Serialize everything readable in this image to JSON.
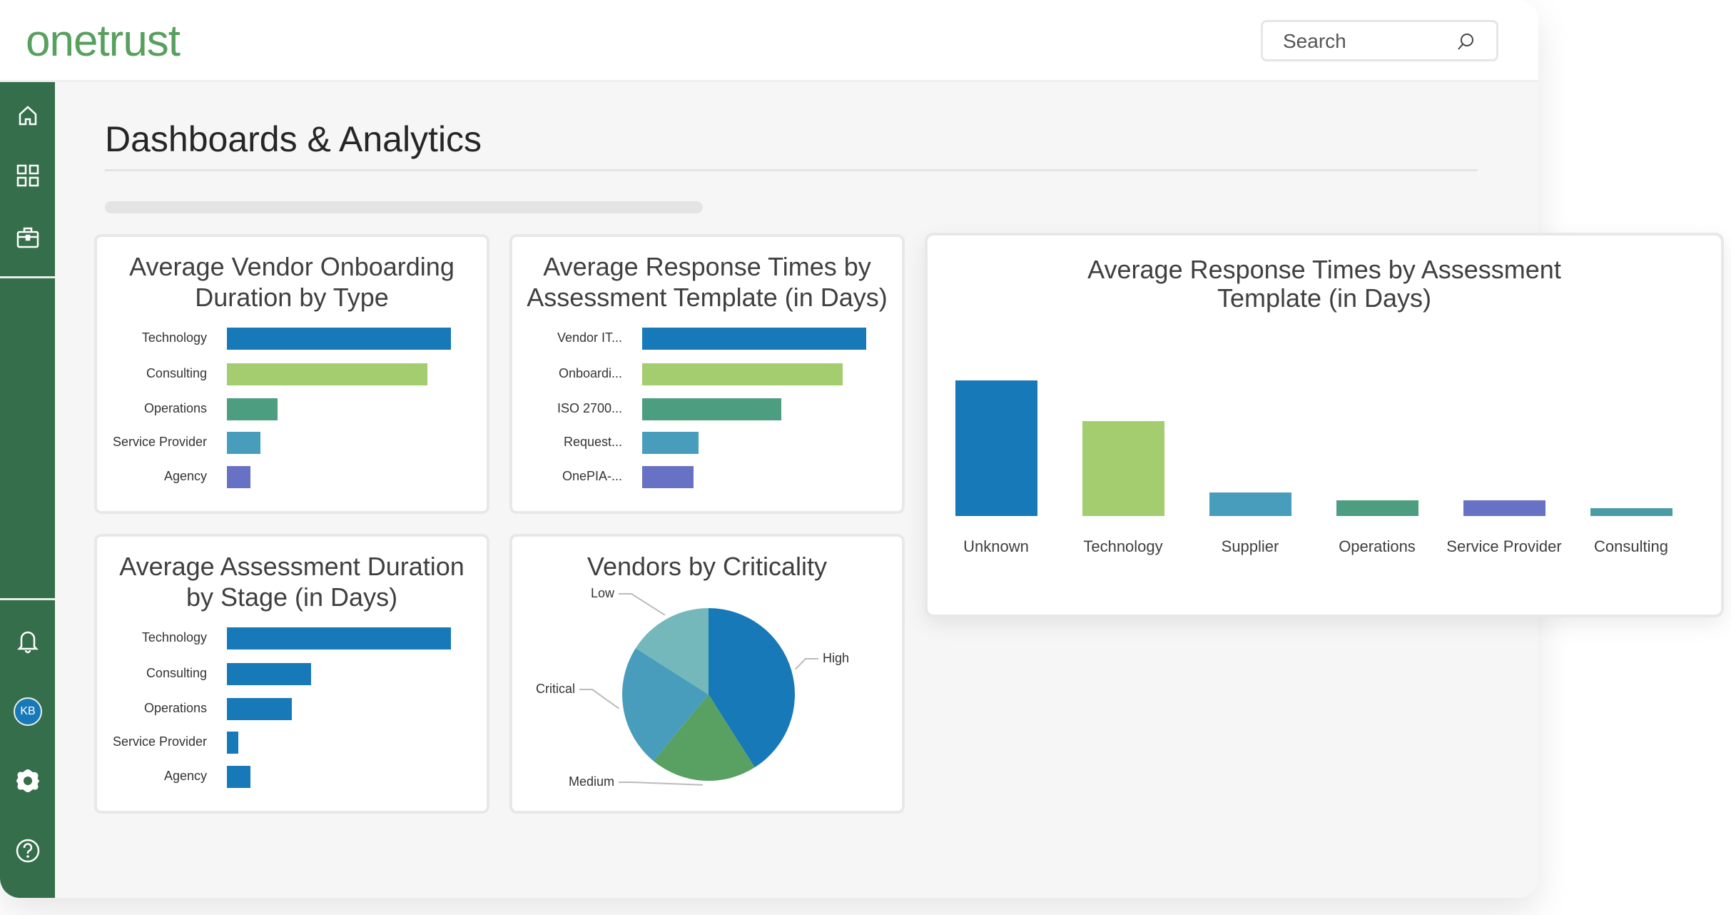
{
  "header": {
    "logo": "onetrust",
    "search_placeholder": "Search"
  },
  "sidebar": {
    "avatar_initials": "KB"
  },
  "page": {
    "title": "Dashboards & Analytics"
  },
  "colors": {
    "sidebar": "#356e4b",
    "logo": "#58a05e",
    "blue": "#1879b9",
    "lime": "#a3cd6f",
    "teal_green": "#4d9e80",
    "light_blue": "#489dbd",
    "purple": "#6872c4",
    "teal": "#4a9ba6"
  },
  "chart_data": [
    {
      "type": "bar",
      "orientation": "horizontal",
      "title": "Average Vendor Onboarding Duration by Type",
      "categories": [
        "Technology",
        "Consulting",
        "Operations",
        "Service Provider",
        "Agency"
      ],
      "values": [
        20,
        17.9,
        4.5,
        3,
        2.1
      ],
      "colors": [
        "#1879b9",
        "#a3cd6f",
        "#4d9e80",
        "#489dbd",
        "#6872c4"
      ]
    },
    {
      "type": "bar",
      "orientation": "horizontal",
      "title": "Average Response Times by Assessment Template (in Days)",
      "categories": [
        "Vendor IT...",
        "Onboardi...",
        "ISO 2700...",
        "Request...",
        "OnePIA-..."
      ],
      "values": [
        20,
        17.9,
        12.4,
        5,
        4.6
      ],
      "colors": [
        "#1879b9",
        "#a3cd6f",
        "#4d9e80",
        "#489dbd",
        "#6872c4"
      ]
    },
    {
      "type": "bar",
      "orientation": "horizontal",
      "title": "Average Assessment Duration by Stage (in Days)",
      "categories": [
        "Technology",
        "Consulting",
        "Operations",
        "Service Provider",
        "Agency"
      ],
      "values": [
        20,
        7.5,
        5.8,
        1,
        2.1
      ],
      "colors": [
        "#1879b9",
        "#1879b9",
        "#1879b9",
        "#1879b9",
        "#1879b9"
      ]
    },
    {
      "type": "pie",
      "title": "Vendors by Criticality",
      "categories": [
        "High",
        "Medium",
        "Critical",
        "Low"
      ],
      "values": [
        41,
        20,
        23,
        16
      ],
      "colors": [
        "#1879b9",
        "#58a162",
        "#489dbd",
        "#74b8bb"
      ]
    },
    {
      "type": "bar",
      "orientation": "vertical",
      "title": "Average Response Times by Assessment Template (in Days)",
      "categories": [
        "Unknown",
        "Technology",
        "Supplier",
        "Operations",
        "Service Provider",
        "Consulting"
      ],
      "values": [
        12.1,
        8.5,
        2.1,
        1.4,
        1.4,
        0.7
      ],
      "colors": [
        "#1879b9",
        "#a3cd6f",
        "#489dbd",
        "#4d9e80",
        "#6872c4",
        "#4a9ba6"
      ]
    }
  ]
}
